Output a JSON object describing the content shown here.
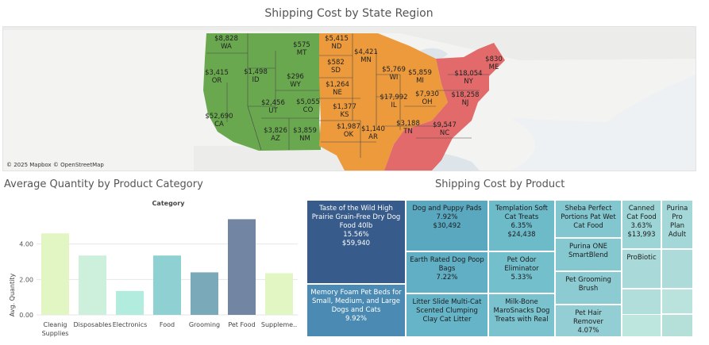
{
  "map": {
    "title": "Shipping Cost by State Region",
    "attribution": "© 2025 Mapbox © OpenStreetMap",
    "region_colors": {
      "West": "#69a84f",
      "Central": "#ec9a3c",
      "East": "#e26a6a"
    },
    "states": [
      {
        "abbr": "WA",
        "cost": "$8,828",
        "region": "West"
      },
      {
        "abbr": "OR",
        "cost": "$3,415",
        "region": "West"
      },
      {
        "abbr": "CA",
        "cost": "$52,690",
        "region": "West"
      },
      {
        "abbr": "ID",
        "cost": "$1,498",
        "region": "West"
      },
      {
        "abbr": "MT",
        "cost": "$575",
        "region": "West"
      },
      {
        "abbr": "WY",
        "cost": "$296",
        "region": "West"
      },
      {
        "abbr": "UT",
        "cost": "$2,456",
        "region": "West"
      },
      {
        "abbr": "AZ",
        "cost": "$3,826",
        "region": "West"
      },
      {
        "abbr": "NM",
        "cost": "$3,859",
        "region": "West"
      },
      {
        "abbr": "CO",
        "cost": "$5,055",
        "region": "Central"
      },
      {
        "abbr": "ND",
        "cost": "$5,415",
        "region": "Central"
      },
      {
        "abbr": "SD",
        "cost": "$582",
        "region": "Central"
      },
      {
        "abbr": "NE",
        "cost": "$1,264",
        "region": "Central"
      },
      {
        "abbr": "KS",
        "cost": "$1,377",
        "region": "Central"
      },
      {
        "abbr": "OK",
        "cost": "$1,987",
        "region": "Central"
      },
      {
        "abbr": "MN",
        "cost": "$4,421",
        "region": "Central"
      },
      {
        "abbr": "WI",
        "cost": "$5,769",
        "region": "Central"
      },
      {
        "abbr": "MI",
        "cost": "$5,859",
        "region": "Central"
      },
      {
        "abbr": "IL",
        "cost": "$17,992",
        "region": "Central"
      },
      {
        "abbr": "AR",
        "cost": "$1,140",
        "region": "Central"
      },
      {
        "abbr": "OH",
        "cost": "$7,930",
        "region": "Central"
      },
      {
        "abbr": "TN",
        "cost": "$3,188",
        "region": "Central"
      },
      {
        "abbr": "NY",
        "cost": "$18,054",
        "region": "East"
      },
      {
        "abbr": "ME",
        "cost": "$830",
        "region": "East"
      },
      {
        "abbr": "NJ",
        "cost": "$18,258",
        "region": "East"
      },
      {
        "abbr": "NC",
        "cost": "$9,547",
        "region": "East"
      }
    ]
  },
  "chart_data": [
    {
      "type": "bar",
      "title": "Average Quantity by Product Category",
      "subtitle": "Category",
      "xlabel": "",
      "ylabel": "Avg. Quantity",
      "categories": [
        "Cleanig Supplies",
        "Disposables",
        "Electronics",
        "Food",
        "Grooming",
        "Pet Food",
        "Suppleme.."
      ],
      "values": [
        4.6,
        3.35,
        1.35,
        3.35,
        2.4,
        5.4,
        2.35
      ],
      "colors": [
        "#e1f6c3",
        "#cdf0dc",
        "#b1ecde",
        "#8fd1d2",
        "#7aa9ba",
        "#7286a4",
        "#e1f6c3"
      ],
      "ylim": [
        0,
        6
      ],
      "yticks": [
        "0.00",
        "2.00",
        "4.00"
      ],
      "ytick_values": [
        0,
        2,
        4
      ],
      "grid": true
    },
    {
      "type": "treemap",
      "title": "Shipping Cost by Product",
      "items": [
        {
          "name": "Taste of the Wild High Prairie Grain-Free Dry Dog Food 40lb",
          "percent": "15.56%",
          "cost": "$59,940",
          "color": "#375b8a",
          "text": "#ffffff"
        },
        {
          "name": "Memory Foam Pet Beds for Small, Medium, and Large Dogs and Cats",
          "percent": "9.92%",
          "cost": "",
          "color": "#4a8ab3",
          "text": "#ffffff"
        },
        {
          "name": "Dog and Puppy Pads",
          "percent": "7.92%",
          "cost": "$30,492",
          "color": "#5aa8c0",
          "text": "#1c1c1c"
        },
        {
          "name": "Earth Rated Dog Poop Bags",
          "percent": "7.22%",
          "cost": "",
          "color": "#61afc5",
          "text": "#1c1c1c"
        },
        {
          "name": "Litter Slide Multi-Cat Scented Clumping Clay Cat Litter",
          "percent": "",
          "cost": "",
          "color": "#66b4c8",
          "text": "#1c1c1c"
        },
        {
          "name": "Templation Soft Cat Treats",
          "percent": "6.35%",
          "cost": "$24,438",
          "color": "#6dbac9",
          "text": "#1c1c1c"
        },
        {
          "name": "Pet Odor Eliminator",
          "percent": "5.33%",
          "cost": "",
          "color": "#74bfcc",
          "text": "#1c1c1c"
        },
        {
          "name": "Milk-Bone MaroSnacks Dog Treats with Real",
          "percent": "",
          "cost": "",
          "color": "#79c2ce",
          "text": "#1c1c1c"
        },
        {
          "name": "Sheba Perfect Portions Pat Wet Cat Food",
          "percent": "",
          "cost": "",
          "color": "#82c6cf",
          "text": "#1c1c1c"
        },
        {
          "name": "Purina ONE SmartBlend",
          "percent": "",
          "cost": "",
          "color": "#86c8d0",
          "text": "#1c1c1c"
        },
        {
          "name": "Pet Grooming Brush",
          "percent": "",
          "cost": "",
          "color": "#8dcbd2",
          "text": "#1c1c1c"
        },
        {
          "name": "Pet Hair Remover",
          "percent": "4.07%",
          "cost": "",
          "color": "#92ced4",
          "text": "#1c1c1c"
        },
        {
          "name": "Canned Cat Food",
          "percent": "3.63%",
          "cost": "$13,993",
          "color": "#9dd4d6",
          "text": "#1c1c1c"
        },
        {
          "name": "Purina Pro Plan Adult",
          "percent": "",
          "cost": "",
          "color": "#a3d7d8",
          "text": "#1c1c1c"
        },
        {
          "name": "ProBiotic",
          "percent": "",
          "cost": "",
          "color": "#a9dad9",
          "text": "#1c1c1c"
        },
        {
          "name": "",
          "percent": "",
          "cost": "",
          "color": "#addbd9",
          "text": "#1c1c1c"
        },
        {
          "name": "",
          "percent": "",
          "cost": "",
          "color": "#b1dddb",
          "text": "#1c1c1c"
        },
        {
          "name": "",
          "percent": "",
          "cost": "",
          "color": "#b9e3dc",
          "text": "#1c1c1c"
        },
        {
          "name": "",
          "percent": "",
          "cost": "",
          "color": "#b5e0da",
          "text": "#1c1c1c"
        },
        {
          "name": "",
          "percent": "",
          "cost": "",
          "color": "#bde6de",
          "text": "#1c1c1c"
        },
        {
          "name": "",
          "percent": "",
          "cost": "",
          "color": "#c3eae0",
          "text": "#1c1c1c"
        }
      ]
    }
  ]
}
